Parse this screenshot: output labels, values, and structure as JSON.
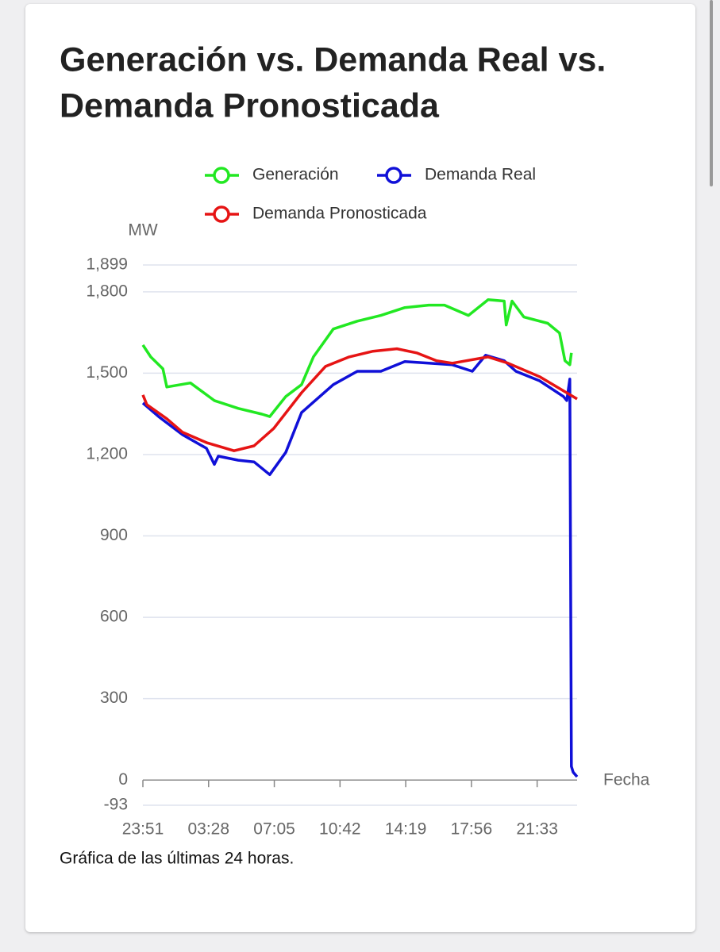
{
  "chart_data": {
    "type": "line",
    "title_lines": [
      "Generación vs. Demanda Real vs.",
      "Demanda Pronosticada"
    ],
    "y_label": "MW",
    "x_label": "Fecha",
    "caption": "Gráfica de las últimas 24 horas.",
    "xlim": [
      "23:51",
      "23:45"
    ],
    "xticks": [
      "23:51",
      "03:28",
      "07:05",
      "10:42",
      "14:19",
      "17:56",
      "21:33"
    ],
    "ylim": [
      -93,
      1899
    ],
    "yticks": [
      -93,
      0,
      300,
      600,
      900,
      {
        "value": 1200,
        "label": "1,200"
      },
      {
        "value": 1500,
        "label": "1,500"
      },
      {
        "value": 1800,
        "label": "1,800"
      },
      {
        "value": 1899,
        "label": "1,899"
      }
    ],
    "grid": true,
    "series": [
      {
        "name": "Generación",
        "color": "#22e822",
        "x": [
          "23:51",
          "00:17",
          "00:57",
          "01:10",
          "02:28",
          "03:47",
          "05:06",
          "06:24",
          "06:50",
          "07:43",
          "08:35",
          "09:14",
          "10:20",
          "11:39",
          "12:57",
          "14:16",
          "15:35",
          "16:27",
          "17:46",
          "18:51",
          "19:44",
          "19:51",
          "20:10",
          "20:49",
          "22:08",
          "22:47",
          "23:05",
          "23:21",
          "23:26"
        ],
        "values": [
          1604,
          1560,
          1516,
          1449,
          1464,
          1399,
          1370,
          1349,
          1340,
          1414,
          1458,
          1560,
          1663,
          1692,
          1713,
          1742,
          1751,
          1751,
          1713,
          1771,
          1766,
          1678,
          1766,
          1707,
          1684,
          1648,
          1546,
          1531,
          1575
        ]
      },
      {
        "name": "Demanda Real",
        "color": "#1010d8",
        "x": [
          "23:51",
          "00:43",
          "02:02",
          "03:21",
          "03:47",
          "04:00",
          "05:06",
          "05:58",
          "06:50",
          "07:43",
          "08:35",
          "10:20",
          "11:39",
          "12:57",
          "14:16",
          "15:35",
          "16:53",
          "17:59",
          "18:43",
          "19:44",
          "20:23",
          "21:41",
          "23:00",
          "23:11",
          "23:21",
          "23:26",
          "23:32",
          "23:45"
        ],
        "values": [
          1390,
          1340,
          1273,
          1223,
          1164,
          1194,
          1179,
          1173,
          1126,
          1208,
          1355,
          1458,
          1507,
          1507,
          1543,
          1537,
          1531,
          1507,
          1566,
          1546,
          1507,
          1472,
          1414,
          1399,
          1478,
          50,
          29,
          12
        ]
      },
      {
        "name": "Demanda Pronosticada",
        "color": "#e61414",
        "x": [
          "23:51",
          "00:04",
          "01:10",
          "02:02",
          "03:21",
          "04:52",
          "05:58",
          "07:03",
          "08:35",
          "09:54",
          "11:12",
          "12:31",
          "13:50",
          "14:55",
          "16:01",
          "16:53",
          "18:51",
          "19:57",
          "21:41",
          "23:45"
        ],
        "values": [
          1420,
          1384,
          1332,
          1282,
          1244,
          1214,
          1232,
          1296,
          1428,
          1525,
          1560,
          1581,
          1590,
          1575,
          1546,
          1537,
          1560,
          1537,
          1487,
          1405
        ]
      }
    ]
  }
}
